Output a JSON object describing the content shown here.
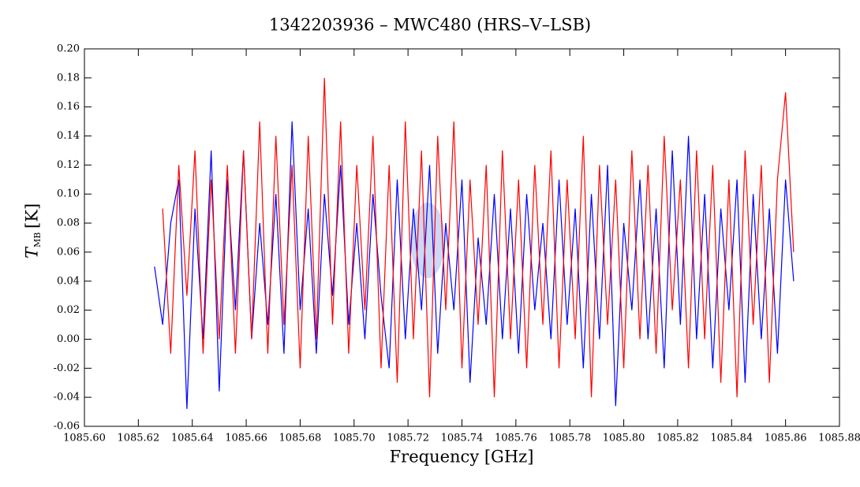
{
  "chart_data": {
    "type": "line",
    "title": "1342203936 – MWC480 (HRS–V–LSB)",
    "xlabel": "Frequency [GHz]",
    "ylabel": "T",
    "ylabel_sub": "MB",
    "ylabel_unit": "[K]",
    "xlim": [
      1085.6,
      1085.88
    ],
    "ylim": [
      -0.06,
      0.2
    ],
    "xticks": [
      {
        "value": 1085.6,
        "label": "1085.60"
      },
      {
        "value": 1085.62,
        "label": "1085.62"
      },
      {
        "value": 1085.64,
        "label": "1085.64"
      },
      {
        "value": 1085.66,
        "label": "1085.66"
      },
      {
        "value": 1085.68,
        "label": "1085.68"
      },
      {
        "value": 1085.7,
        "label": "1085.70"
      },
      {
        "value": 1085.72,
        "label": "1085.72"
      },
      {
        "value": 1085.74,
        "label": "1085.74"
      },
      {
        "value": 1085.76,
        "label": "1085.76"
      },
      {
        "value": 1085.78,
        "label": "1085.78"
      },
      {
        "value": 1085.8,
        "label": "1085.80"
      },
      {
        "value": 1085.82,
        "label": "1085.82"
      },
      {
        "value": 1085.84,
        "label": "1085.84"
      },
      {
        "value": 1085.86,
        "label": "1085.86"
      },
      {
        "value": 1085.88,
        "label": "1085.88"
      }
    ],
    "yticks": [
      {
        "value": -0.06,
        "label": "-0.06"
      },
      {
        "value": -0.04,
        "label": "-0.04"
      },
      {
        "value": -0.02,
        "label": "-0.02"
      },
      {
        "value": 0,
        "label": "0.00"
      },
      {
        "value": 0.02,
        "label": "0.02"
      },
      {
        "value": 0.04,
        "label": "0.04"
      },
      {
        "value": 0.06,
        "label": "0.06"
      },
      {
        "value": 0.08,
        "label": "0.08"
      },
      {
        "value": 0.1,
        "label": "0.10"
      },
      {
        "value": 0.12,
        "label": "0.12"
      },
      {
        "value": 0.14,
        "label": "0.14"
      },
      {
        "value": 0.16,
        "label": "0.16"
      },
      {
        "value": 0.18,
        "label": "0.18"
      },
      {
        "value": 0.2,
        "label": "0.20"
      }
    ],
    "x": [
      1085.626,
      1085.629,
      1085.632,
      1085.635,
      1085.638,
      1085.641,
      1085.644,
      1085.647,
      1085.65,
      1085.653,
      1085.656,
      1085.659,
      1085.662,
      1085.665,
      1085.668,
      1085.671,
      1085.674,
      1085.677,
      1085.68,
      1085.683,
      1085.686,
      1085.689,
      1085.692,
      1085.695,
      1085.698,
      1085.701,
      1085.704,
      1085.707,
      1085.71,
      1085.713,
      1085.716,
      1085.719,
      1085.722,
      1085.725,
      1085.728,
      1085.731,
      1085.734,
      1085.737,
      1085.74,
      1085.743,
      1085.746,
      1085.749,
      1085.752,
      1085.755,
      1085.758,
      1085.761,
      1085.764,
      1085.767,
      1085.77,
      1085.773,
      1085.776,
      1085.779,
      1085.782,
      1085.785,
      1085.788,
      1085.791,
      1085.794,
      1085.797,
      1085.8,
      1085.803,
      1085.806,
      1085.809,
      1085.812,
      1085.815,
      1085.818,
      1085.821,
      1085.824,
      1085.827,
      1085.83,
      1085.833,
      1085.836,
      1085.839,
      1085.842,
      1085.845,
      1085.848,
      1085.851,
      1085.854,
      1085.857,
      1085.86,
      1085.863
    ],
    "series": [
      {
        "color": "#0000ff",
        "values": [
          0.05,
          0.01,
          0.08,
          0.11,
          -0.048,
          0.09,
          0.0,
          0.13,
          -0.036,
          0.11,
          0.02,
          0.13,
          0.0,
          0.08,
          0.01,
          0.1,
          -0.01,
          0.15,
          0.02,
          0.09,
          -0.01,
          0.1,
          0.03,
          0.12,
          0.01,
          0.08,
          0.0,
          0.1,
          0.03,
          -0.02,
          0.11,
          0.0,
          0.09,
          0.02,
          0.12,
          -0.01,
          0.08,
          0.02,
          0.11,
          -0.03,
          0.07,
          0.01,
          0.1,
          0.0,
          0.09,
          -0.01,
          0.1,
          0.02,
          0.08,
          0.0,
          0.11,
          0.01,
          0.09,
          -0.02,
          0.1,
          0.0,
          0.12,
          -0.046,
          0.08,
          0.02,
          0.11,
          0.0,
          0.09,
          -0.02,
          0.13,
          0.01,
          0.14,
          0.0,
          0.1,
          -0.02,
          0.09,
          0.02,
          0.11,
          -0.03,
          0.1,
          0.0,
          0.09,
          -0.01,
          0.11,
          0.04
        ]
      },
      {
        "color": "#ff0000",
        "values": [
          null,
          0.09,
          -0.01,
          0.12,
          0.03,
          0.13,
          -0.01,
          0.11,
          0.0,
          0.12,
          -0.01,
          0.13,
          0.0,
          0.15,
          -0.01,
          0.14,
          0.01,
          0.12,
          -0.02,
          0.14,
          0.0,
          0.18,
          0.01,
          0.15,
          -0.01,
          0.12,
          0.02,
          0.14,
          -0.02,
          0.12,
          -0.03,
          0.15,
          0.0,
          0.13,
          -0.04,
          0.14,
          0.02,
          0.15,
          -0.02,
          0.11,
          0.01,
          0.12,
          -0.04,
          0.13,
          0.0,
          0.11,
          -0.02,
          0.12,
          0.01,
          0.13,
          -0.02,
          0.11,
          0.0,
          0.14,
          -0.04,
          0.12,
          0.01,
          0.11,
          -0.02,
          0.13,
          0.0,
          0.12,
          -0.01,
          0.14,
          0.02,
          0.11,
          -0.02,
          0.13,
          0.0,
          0.12,
          -0.03,
          0.11,
          -0.04,
          0.13,
          0.01,
          0.12,
          -0.03,
          0.11,
          0.17,
          0.06
        ]
      }
    ]
  }
}
